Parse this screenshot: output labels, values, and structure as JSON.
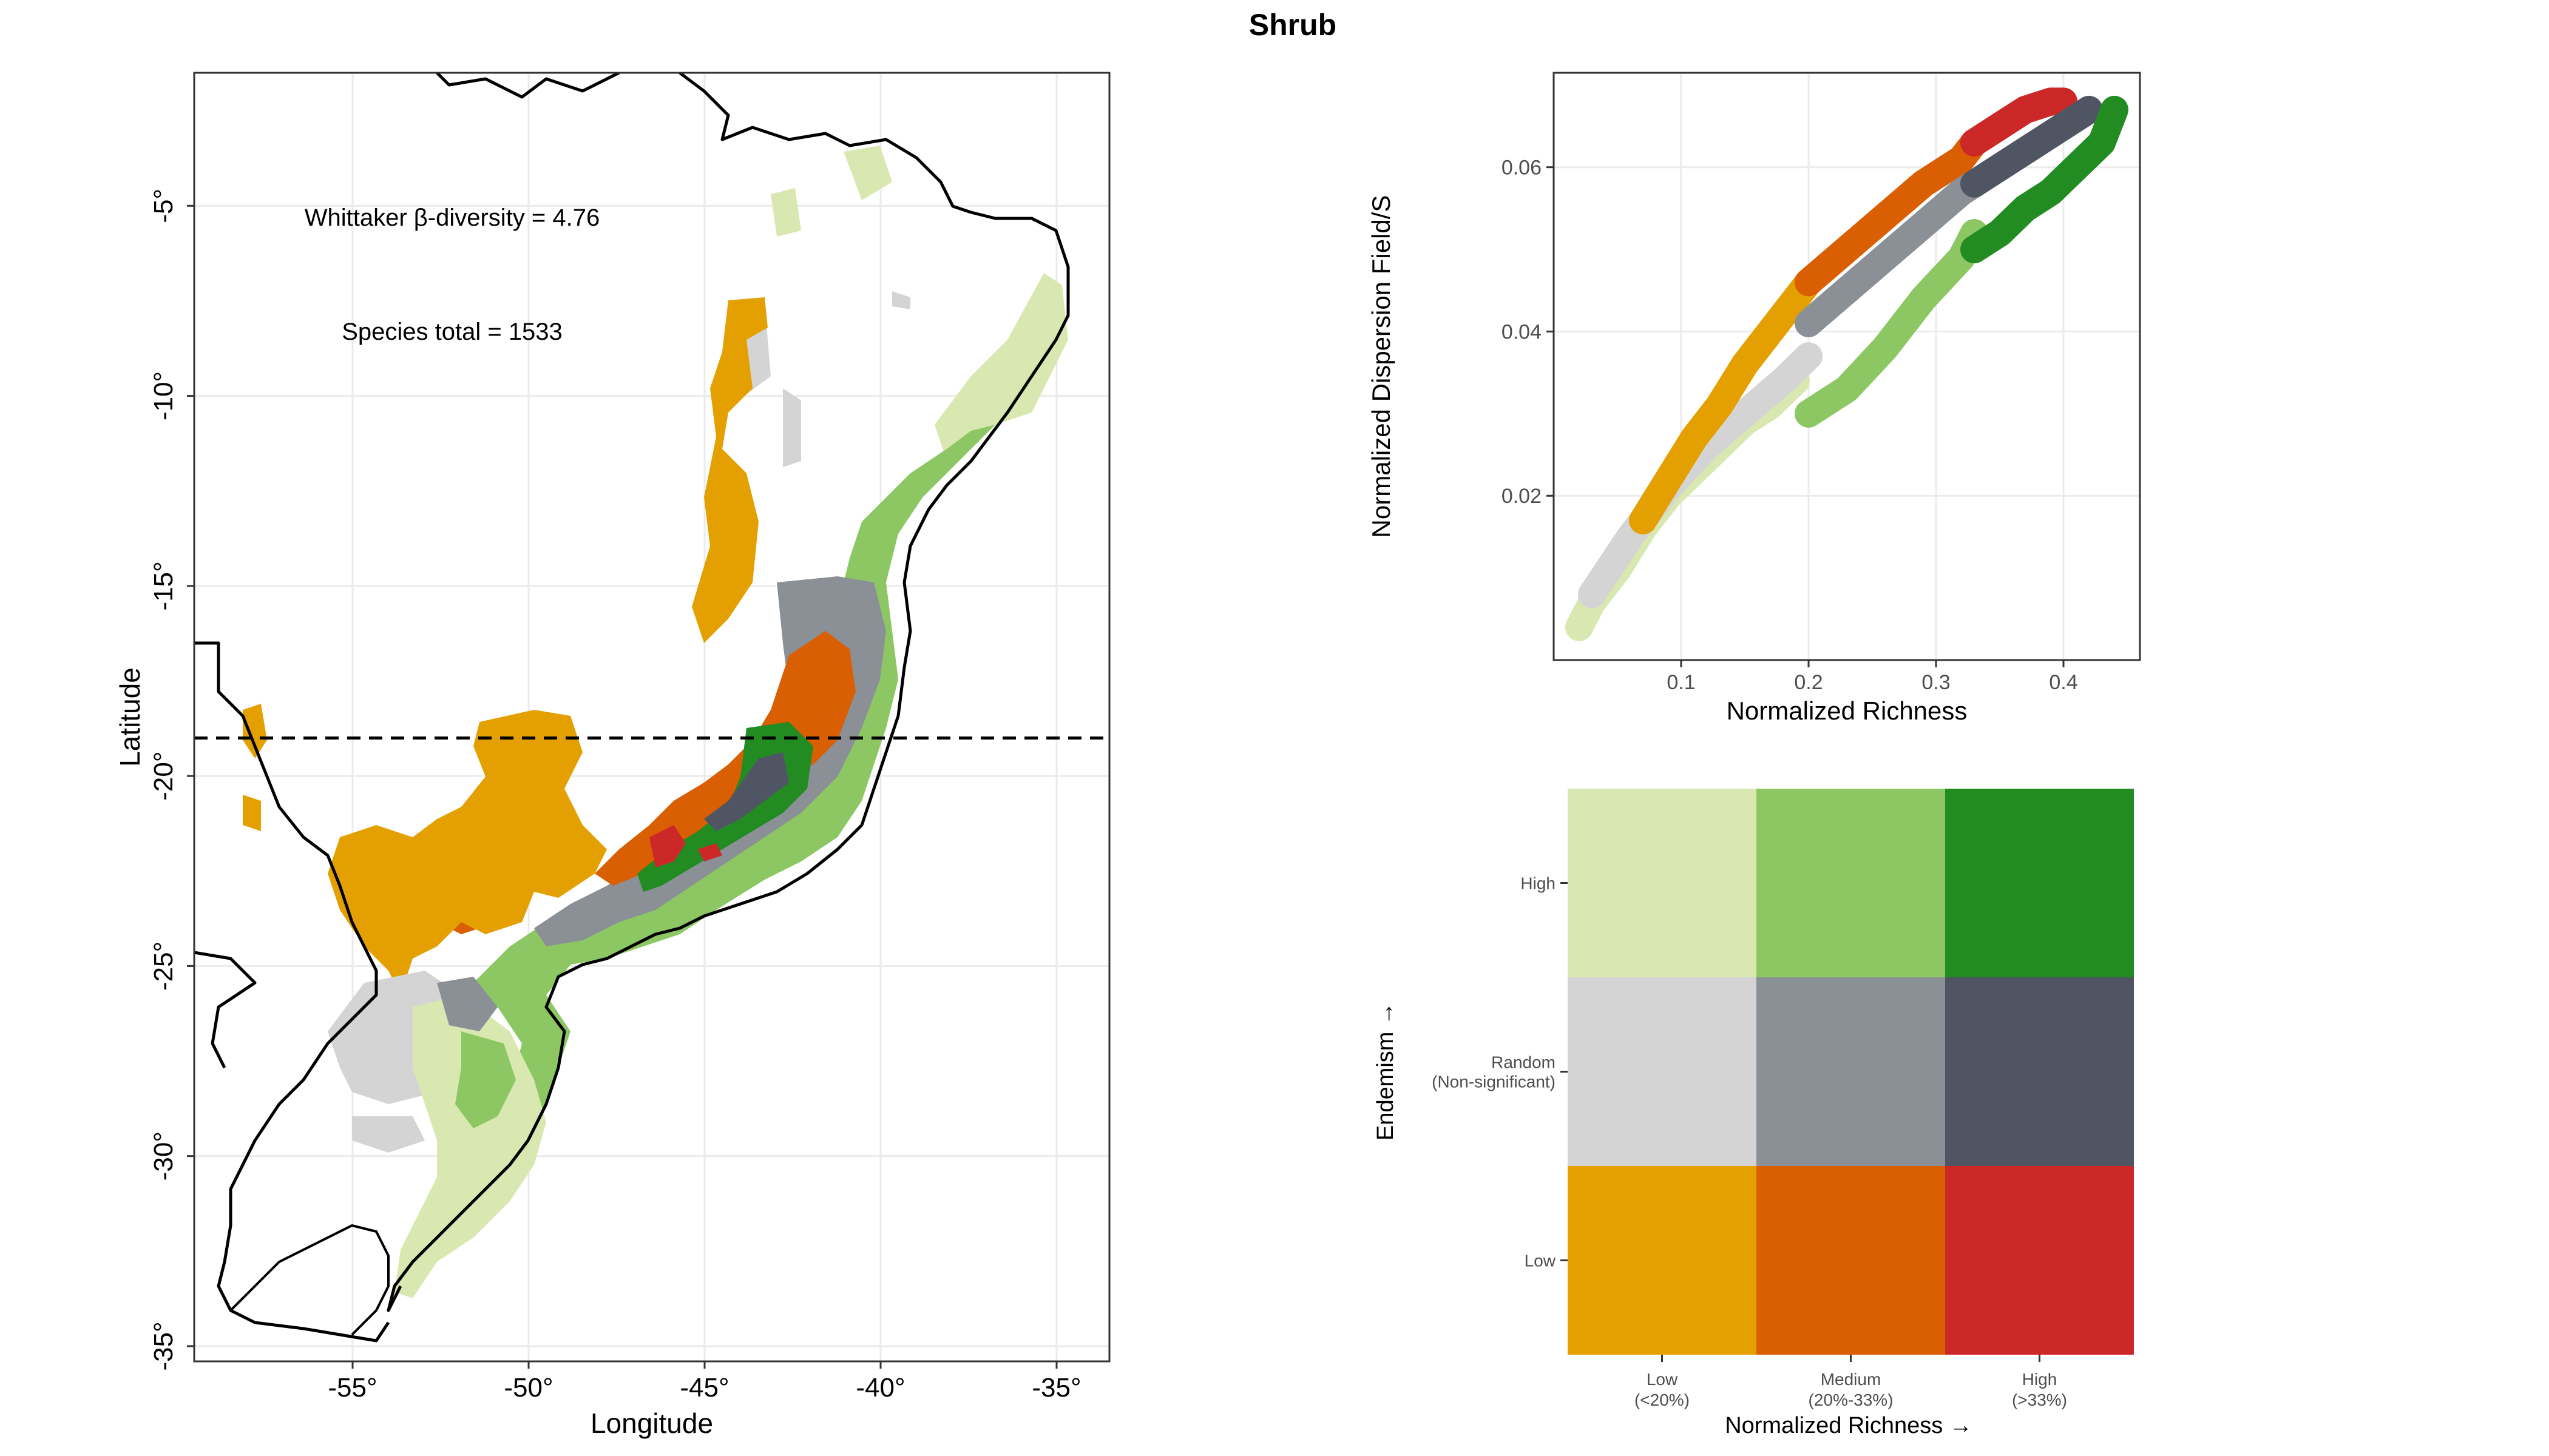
{
  "title": "Shrub",
  "colors": {
    "low_low": "#E4A000",
    "low_med": "#D95F02",
    "low_high": "#CD2828",
    "rnd_low": "#D4D4D4",
    "rnd_med": "#8A9096",
    "rnd_high": "#4F5563",
    "high_low": "#D9E8B1",
    "high_med": "#8DC763",
    "high_high": "#228B22",
    "grid": "#EBEBEB",
    "axis": "#333333"
  },
  "map": {
    "xlabel": "Longitude",
    "ylabel": "Latitude",
    "annot_beta": "Whittaker β-diversity = 4.76",
    "annot_species": "Species total = 1533",
    "xlim": [
      -59.5,
      -33.5
    ],
    "ylim": [
      -35.4,
      -1.5
    ],
    "xticks": [
      -55,
      -50,
      -45,
      -40,
      -35
    ],
    "xtick_labels": [
      "-55°",
      "-50°",
      "-45°",
      "-40°",
      "-35°"
    ],
    "yticks": [
      -5,
      -10,
      -15,
      -20,
      -25,
      -30,
      -35
    ],
    "ytick_labels": [
      "-5°",
      "-10°",
      "-15°",
      "-20°",
      "-25°",
      "-30°",
      "-35°"
    ],
    "dashed_line_lat": -19.0
  },
  "chart_data": [
    {
      "type": "scatter",
      "title": "",
      "xlabel": "Normalized Richness",
      "ylabel": "Normalized Dispersion Field/S",
      "xlim": [
        0.0,
        0.46
      ],
      "ylim": [
        0.0,
        0.0715
      ],
      "xticks": [
        0.1,
        0.2,
        0.3,
        0.4
      ],
      "xtick_labels": [
        "0.1",
        "0.2",
        "0.3",
        "0.4"
      ],
      "yticks": [
        0.02,
        0.04,
        0.06
      ],
      "ytick_labels": [
        "0.02",
        "0.04",
        "0.06"
      ],
      "series": [
        {
          "name": "Low richness / High endemism",
          "color_key": "high_low",
          "x": [
            0.02,
            0.03,
            0.05,
            0.07,
            0.09,
            0.11,
            0.13,
            0.15,
            0.17,
            0.19
          ],
          "y": [
            0.004,
            0.007,
            0.011,
            0.016,
            0.02,
            0.023,
            0.026,
            0.029,
            0.031,
            0.034
          ]
        },
        {
          "name": "Low richness / Random",
          "color_key": "rnd_low",
          "x": [
            0.03,
            0.06,
            0.09,
            0.12,
            0.15,
            0.18,
            0.2
          ],
          "y": [
            0.008,
            0.015,
            0.021,
            0.026,
            0.03,
            0.034,
            0.037
          ]
        },
        {
          "name": "Low richness / Low endemism",
          "color_key": "low_low",
          "x": [
            0.07,
            0.09,
            0.11,
            0.13,
            0.15,
            0.17,
            0.19,
            0.2
          ],
          "y": [
            0.017,
            0.022,
            0.027,
            0.031,
            0.036,
            0.04,
            0.044,
            0.046
          ]
        },
        {
          "name": "Medium richness / Low endemism",
          "color_key": "low_med",
          "x": [
            0.2,
            0.23,
            0.26,
            0.29,
            0.32,
            0.33
          ],
          "y": [
            0.046,
            0.05,
            0.054,
            0.058,
            0.061,
            0.063
          ]
        },
        {
          "name": "Medium richness / Random",
          "color_key": "rnd_med",
          "x": [
            0.2,
            0.23,
            0.26,
            0.29,
            0.32,
            0.33
          ],
          "y": [
            0.041,
            0.045,
            0.049,
            0.053,
            0.057,
            0.058
          ]
        },
        {
          "name": "Medium richness / High endemism",
          "color_key": "high_med",
          "x": [
            0.2,
            0.23,
            0.26,
            0.29,
            0.32,
            0.33
          ],
          "y": [
            0.03,
            0.033,
            0.038,
            0.044,
            0.049,
            0.052
          ]
        },
        {
          "name": "High richness / Low endemism",
          "color_key": "low_high",
          "x": [
            0.33,
            0.35,
            0.37,
            0.39,
            0.4
          ],
          "y": [
            0.063,
            0.065,
            0.067,
            0.068,
            0.068
          ]
        },
        {
          "name": "High richness / Random",
          "color_key": "rnd_high",
          "x": [
            0.33,
            0.35,
            0.37,
            0.39,
            0.41,
            0.42
          ],
          "y": [
            0.058,
            0.06,
            0.062,
            0.064,
            0.066,
            0.067
          ]
        },
        {
          "name": "High richness / High endemism",
          "color_key": "high_high",
          "x": [
            0.33,
            0.35,
            0.37,
            0.39,
            0.41,
            0.43,
            0.44
          ],
          "y": [
            0.05,
            0.052,
            0.055,
            0.057,
            0.06,
            0.063,
            0.067
          ]
        }
      ]
    },
    {
      "type": "heatmap",
      "title": "",
      "xlabel": "Normalized Richness →",
      "ylabel": "Endemism →",
      "x_categories": [
        {
          "line1": "Low",
          "line2": "(<20%)"
        },
        {
          "line1": "Medium",
          "line2": "(20%-33%)"
        },
        {
          "line1": "High",
          "line2": "(>33%)"
        }
      ],
      "y_categories": [
        {
          "line1": "High",
          "line2": ""
        },
        {
          "line1": "Random",
          "line2": "(Non-significant)"
        },
        {
          "line1": "Low",
          "line2": ""
        }
      ],
      "cells": [
        [
          "high_low",
          "high_med",
          "high_high"
        ],
        [
          "rnd_low",
          "rnd_med",
          "rnd_high"
        ],
        [
          "low_low",
          "low_med",
          "low_high"
        ]
      ]
    }
  ]
}
